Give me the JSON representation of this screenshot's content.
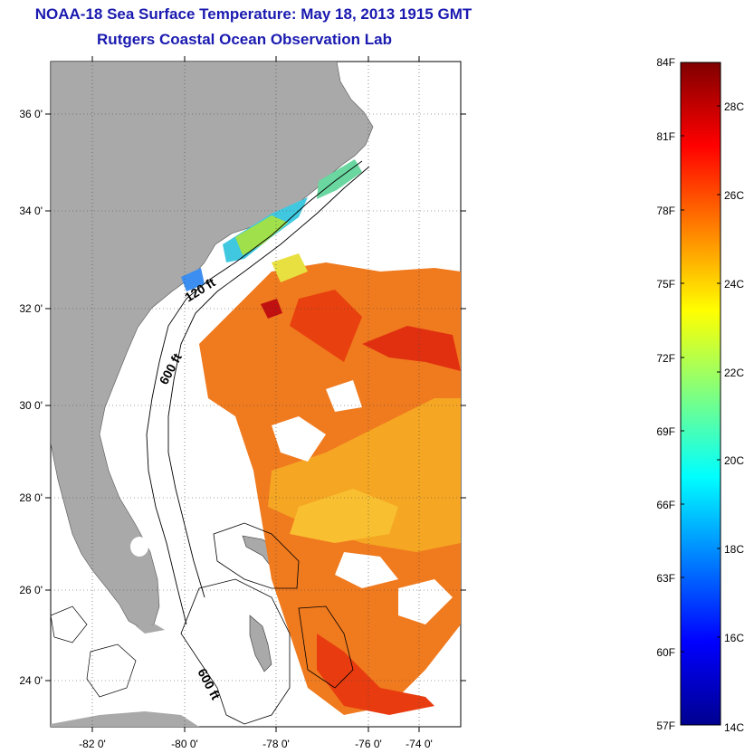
{
  "header": {
    "title": "NOAA-18 Sea Surface Temperature:  May 18, 2013 1915 GMT",
    "subtitle": "Rutgers Coastal Ocean Observation Lab"
  },
  "map": {
    "lat_labels": [
      "36 0'",
      "34 0'",
      "32 0'",
      "30 0'",
      "28 0'",
      "26 0'",
      "24 0'"
    ],
    "lon_labels": [
      "-82 0'",
      "-80 0'",
      "-78 0'",
      "-76 0'",
      "-74 0'"
    ],
    "contours": [
      "120 ft",
      "600 ft",
      "600 ft"
    ]
  },
  "colorbar": {
    "f_labels": [
      "84F",
      "81F",
      "78F",
      "75F",
      "72F",
      "69F",
      "66F",
      "63F",
      "60F",
      "57F"
    ],
    "c_labels": [
      "28C",
      "26C",
      "24C",
      "22C",
      "20C",
      "18C",
      "16C",
      "14C"
    ]
  },
  "colors": {
    "title": "#1a1ab0",
    "land": "#a9a9a9",
    "ocean_nodata": "#ffffff"
  }
}
